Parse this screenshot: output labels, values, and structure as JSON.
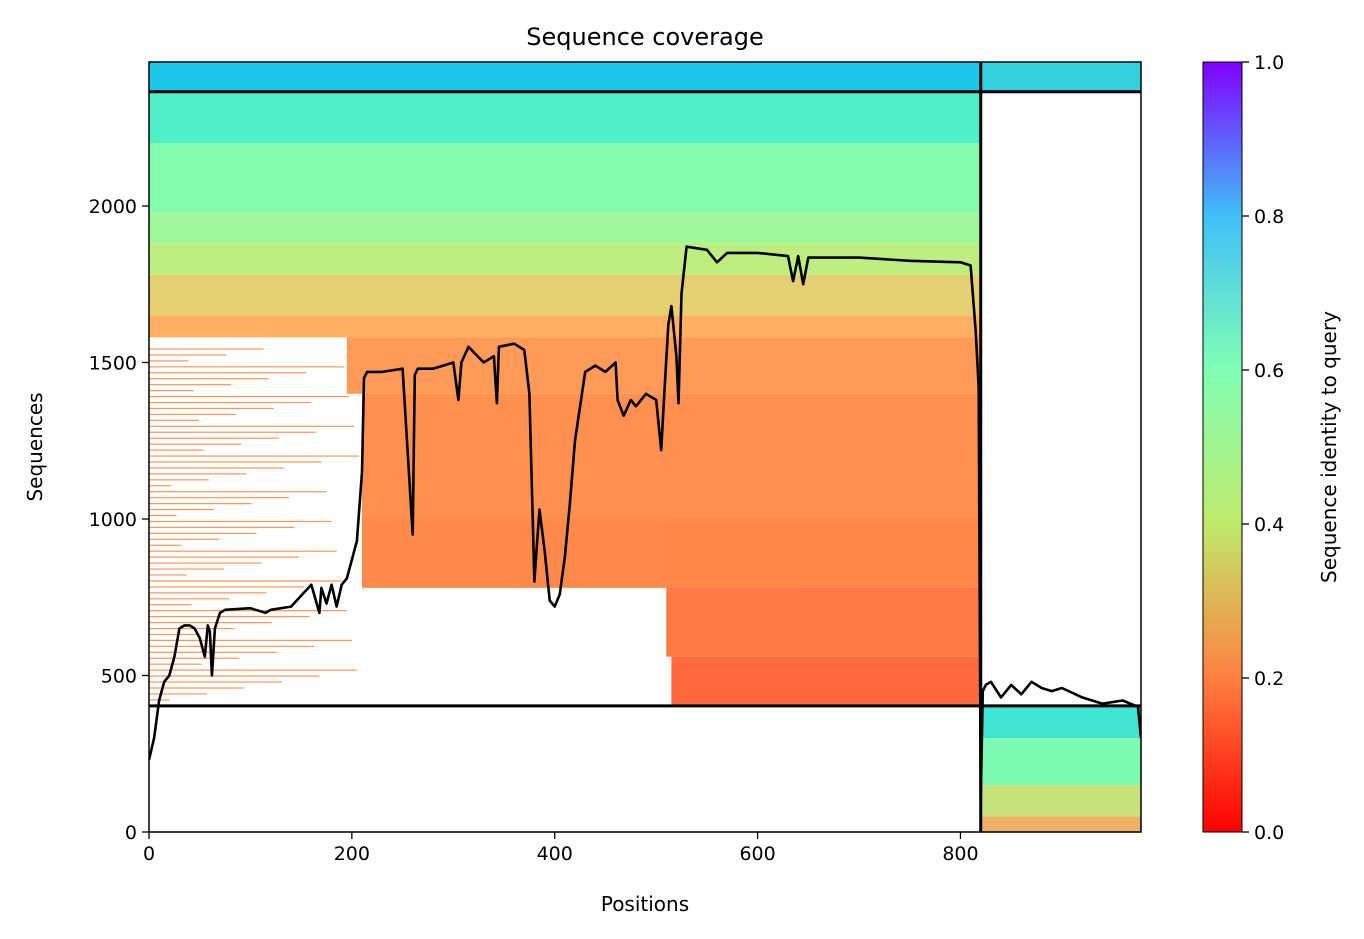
{
  "chart_data": {
    "type": "heatmap",
    "title": "Sequence coverage",
    "xlabel": "Positions",
    "ylabel": "Sequences",
    "xlim": [
      0,
      978
    ],
    "ylim": [
      0,
      2460
    ],
    "x_ticks": [
      0,
      200,
      400,
      600,
      800
    ],
    "y_ticks": [
      0,
      500,
      1000,
      1500,
      2000
    ],
    "colorbar": {
      "label": "Sequence identity to query",
      "range": [
        0.0,
        1.0
      ],
      "ticks": [
        "0.0",
        "0.2",
        "0.4",
        "0.6",
        "0.8",
        "1.0"
      ],
      "colormap": "rainbow_r",
      "stops": [
        "#ff0000",
        "#ff8040",
        "#bfea6a",
        "#80ffb4",
        "#40c0f8",
        "#8000ff"
      ]
    },
    "segment_boundaries": {
      "vertical_x": [
        820
      ],
      "horizontal_y": [
        403,
        2365
      ]
    },
    "coverage_line": {
      "name": "",
      "x": [
        0,
        5,
        10,
        15,
        20,
        25,
        30,
        35,
        40,
        45,
        50,
        55,
        58,
        60,
        62,
        65,
        70,
        75,
        100,
        115,
        120,
        140,
        160,
        168,
        170,
        175,
        180,
        185,
        190,
        195,
        200,
        205,
        210,
        212,
        215,
        230,
        250,
        260,
        262,
        265,
        280,
        300,
        305,
        308,
        315,
        330,
        340,
        343,
        345,
        360,
        370,
        375,
        380,
        382,
        385,
        390,
        395,
        400,
        405,
        410,
        415,
        420,
        430,
        440,
        450,
        460,
        462,
        468,
        475,
        480,
        490,
        500,
        505,
        508,
        512,
        515,
        520,
        522,
        525,
        530,
        550,
        560,
        570,
        600,
        630,
        635,
        640,
        645,
        650,
        700,
        750,
        800,
        810,
        815,
        818,
        820,
        822,
        825,
        830,
        840,
        850,
        860,
        870,
        880,
        890,
        900,
        920,
        940,
        960,
        975,
        978
      ],
      "values": [
        230,
        300,
        420,
        480,
        500,
        560,
        650,
        660,
        660,
        650,
        620,
        560,
        660,
        640,
        500,
        650,
        700,
        710,
        715,
        700,
        710,
        720,
        790,
        700,
        780,
        730,
        790,
        720,
        790,
        810,
        870,
        930,
        1150,
        1450,
        1470,
        1470,
        1480,
        950,
        1460,
        1480,
        1480,
        1500,
        1380,
        1500,
        1550,
        1500,
        1520,
        1370,
        1550,
        1560,
        1540,
        1400,
        800,
        900,
        1030,
        900,
        740,
        720,
        760,
        880,
        1050,
        1250,
        1470,
        1490,
        1470,
        1500,
        1380,
        1330,
        1380,
        1360,
        1400,
        1380,
        1220,
        1400,
        1620,
        1680,
        1520,
        1370,
        1720,
        1870,
        1860,
        1820,
        1850,
        1850,
        1840,
        1760,
        1840,
        1750,
        1835,
        1835,
        1825,
        1820,
        1810,
        1600,
        1420,
        100,
        450,
        470,
        480,
        430,
        470,
        440,
        480,
        460,
        450,
        460,
        430,
        410,
        420,
        400,
        300
      ]
    }
  }
}
